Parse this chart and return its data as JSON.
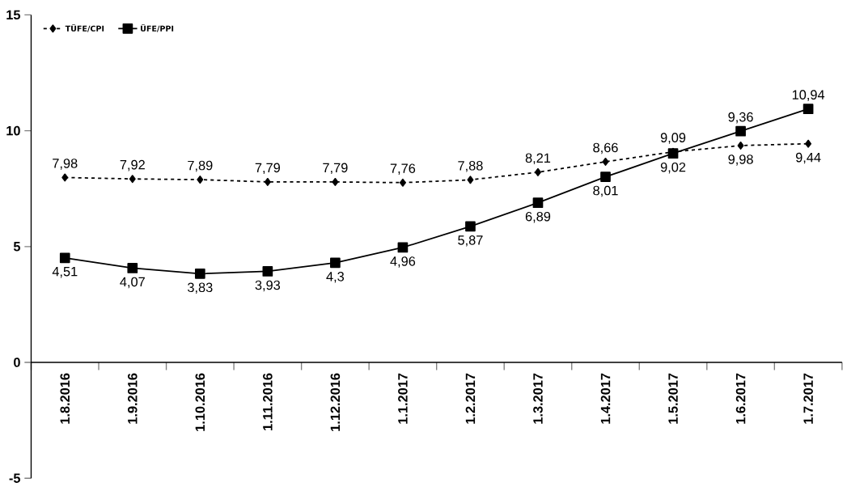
{
  "chart_data": {
    "type": "line",
    "categories": [
      "1.8.2016",
      "1.9.2016",
      "1.10.2016",
      "1.11.2016",
      "1.12.2016",
      "1.1.2017",
      "1.2.2017",
      "1.3.2017",
      "1.4.2017",
      "1.5.2017",
      "1.6.2017",
      "1.7.2017"
    ],
    "series": [
      {
        "name": "TÜFE/CPI",
        "color": "#000000",
        "marker": "diamond",
        "line_style": "dashed",
        "values": [
          7.98,
          7.92,
          7.89,
          7.79,
          7.79,
          7.76,
          7.88,
          8.21,
          8.66,
          9.09,
          9.36,
          9.44
        ],
        "value_labels": [
          "7,98",
          "7,92",
          "7,89",
          "7,79",
          "7,79",
          "7,76",
          "7,88",
          "8,21",
          "8,66",
          "9,09",
          "9,36",
          "9,44"
        ]
      },
      {
        "name": "ÜFE/PPI",
        "color": "#000000",
        "marker": "square",
        "line_style": "solid",
        "values": [
          4.51,
          4.07,
          3.83,
          3.93,
          4.3,
          4.96,
          5.87,
          6.89,
          8.01,
          9.02,
          9.98,
          10.94
        ],
        "value_labels": [
          "4,51",
          "4,07",
          "3,83",
          "3,93",
          "4,3",
          "4,96",
          "5,87",
          "6,89",
          "8,01",
          "9,02",
          "9,98",
          "10,94"
        ]
      }
    ],
    "ylim": [
      -5,
      15
    ],
    "yticks": [
      -5,
      0,
      5,
      10,
      15
    ],
    "grid": false,
    "legend": "top left"
  }
}
